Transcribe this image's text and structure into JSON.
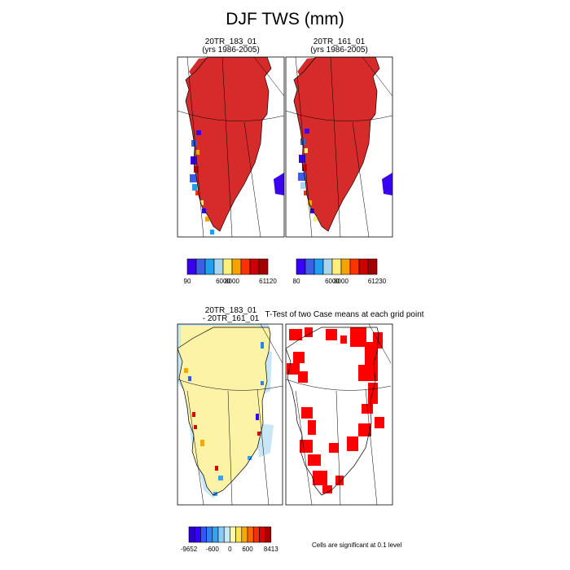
{
  "figure": {
    "title": "DJF TWS (mm)",
    "note": "Cells are significant at 0.1 level"
  },
  "colors": {
    "land_high": "#d62b2b",
    "diff_bg": "#fcf3a6",
    "sig": "#ff0000",
    "coast": "#000000",
    "grid": "#000000"
  },
  "chart_data": [
    {
      "type": "heatmap",
      "title": "20TR_183_01",
      "subtitle": "(yrs 1986-2005)",
      "colorbar": {
        "colors": [
          "#3a00f0",
          "#3b60e6",
          "#1e9df2",
          "#a7d4ee",
          "#fff07a",
          "#f5a300",
          "#ff3300",
          "#cc0000",
          "#a30000"
        ],
        "tick_labels": [
          "90",
          "6000",
          "8000",
          "61120"
        ]
      }
    },
    {
      "type": "heatmap",
      "title": "20TR_161_01",
      "subtitle": "(yrs 1986-2005)",
      "colorbar": {
        "colors": [
          "#3a00f0",
          "#3b60e6",
          "#1e9df2",
          "#a7d4ee",
          "#fff07a",
          "#f5a300",
          "#ff3300",
          "#cc0000",
          "#a30000"
        ],
        "tick_labels": [
          "80",
          "6000",
          "8000",
          "61230"
        ]
      }
    },
    {
      "type": "heatmap",
      "title": "20TR_183_01",
      "subtitle": "- 20TR_161_01",
      "colorbar": {
        "colors": [
          "#2a00ce",
          "#3300ff",
          "#3355ff",
          "#2f80f5",
          "#36a2f2",
          "#8fcaf2",
          "#c7e7f6",
          "#fff8b0",
          "#fde05a",
          "#f7a800",
          "#fb6a00",
          "#f33000",
          "#d90000",
          "#a80000"
        ],
        "tick_labels": [
          "-9652",
          "-600",
          "0",
          "600",
          "8413"
        ]
      }
    },
    {
      "type": "heatmap",
      "title": "T-Test of two Case means at each grid point"
    }
  ]
}
